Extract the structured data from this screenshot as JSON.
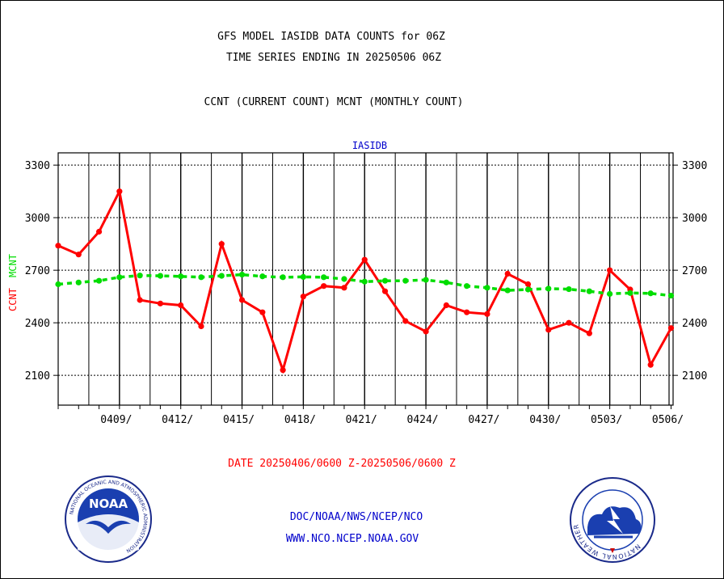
{
  "header": {
    "title_line1": "GFS MODEL IASIDB DATA COUNTS for 06Z",
    "title_line2": "TIME SERIES ENDING IN 20250506 06Z",
    "subtitle": "CCNT (CURRENT COUNT) MCNT (MONTHLY COUNT)"
  },
  "footer": {
    "date_range": "DATE 20250406/0600 Z-20250506/0600 Z",
    "org_line": "DOC/NOAA/NWS/NCEP/NCO",
    "url_line": "WWW.NCO.NCEP.NOAA.GOV"
  },
  "logos": {
    "noaa_text": "NOAA",
    "noaa_ring_top": "NATIONAL OCEANIC AND ATMOSPHERIC ADMINISTRATION",
    "noaa_ring_bottom": "U.S. DEPARTMENT OF COMMERCE",
    "nws_ring": "NATIONAL WEATHER SERVICE"
  },
  "colors": {
    "ccnt": "#ff0000",
    "mcnt": "#00dd00",
    "label_blue": "#0000cc",
    "date_red": "#ff0000",
    "grid": "#000000"
  },
  "chart_data": {
    "type": "line",
    "title": "IASIDB",
    "ylabel_ccnt": "CCNT",
    "ylabel_mcnt": "MCNT",
    "ylim": [
      1930,
      3370
    ],
    "yticks": [
      2100,
      2400,
      2700,
      3000,
      3300
    ],
    "ytick_labels": [
      "2100",
      "2400",
      "2700",
      "3000",
      "3300"
    ],
    "xlim": [
      0,
      30.1
    ],
    "xticks": [
      3,
      6,
      9,
      12,
      15,
      18,
      21,
      24,
      27,
      30
    ],
    "xtick_labels": [
      "0409/",
      "0412/",
      "0415/",
      "0418/",
      "0421/",
      "0424/",
      "0427/",
      "0430/",
      "0503/",
      "0506/"
    ],
    "grid": true,
    "series": [
      {
        "name": "CCNT",
        "x": [
          0,
          1,
          2,
          3,
          4,
          5,
          6,
          7,
          8,
          9,
          10,
          11,
          12,
          13,
          14,
          15,
          16,
          17,
          18,
          19,
          20,
          21,
          22,
          23,
          24,
          25,
          26,
          27,
          28,
          29,
          30
        ],
        "values": [
          2840,
          2790,
          2920,
          3150,
          2530,
          2510,
          2500,
          2380,
          2850,
          2530,
          2460,
          2130,
          2550,
          2610,
          2600,
          2760,
          2580,
          2410,
          2350,
          2500,
          2460,
          2450,
          2680,
          2620,
          2360,
          2400,
          2340,
          2700,
          2590,
          2160,
          2370
        ]
      },
      {
        "name": "MCNT",
        "x": [
          0,
          1,
          2,
          3,
          4,
          5,
          6,
          7,
          8,
          9,
          10,
          11,
          12,
          13,
          14,
          15,
          16,
          17,
          18,
          19,
          20,
          21,
          22,
          23,
          24,
          25,
          26,
          27,
          28,
          29,
          30
        ],
        "values": [
          2620,
          2630,
          2640,
          2660,
          2670,
          2668,
          2665,
          2660,
          2668,
          2675,
          2665,
          2660,
          2662,
          2660,
          2650,
          2635,
          2640,
          2640,
          2645,
          2630,
          2610,
          2600,
          2585,
          2590,
          2595,
          2592,
          2580,
          2565,
          2570,
          2568,
          2555
        ]
      }
    ]
  }
}
